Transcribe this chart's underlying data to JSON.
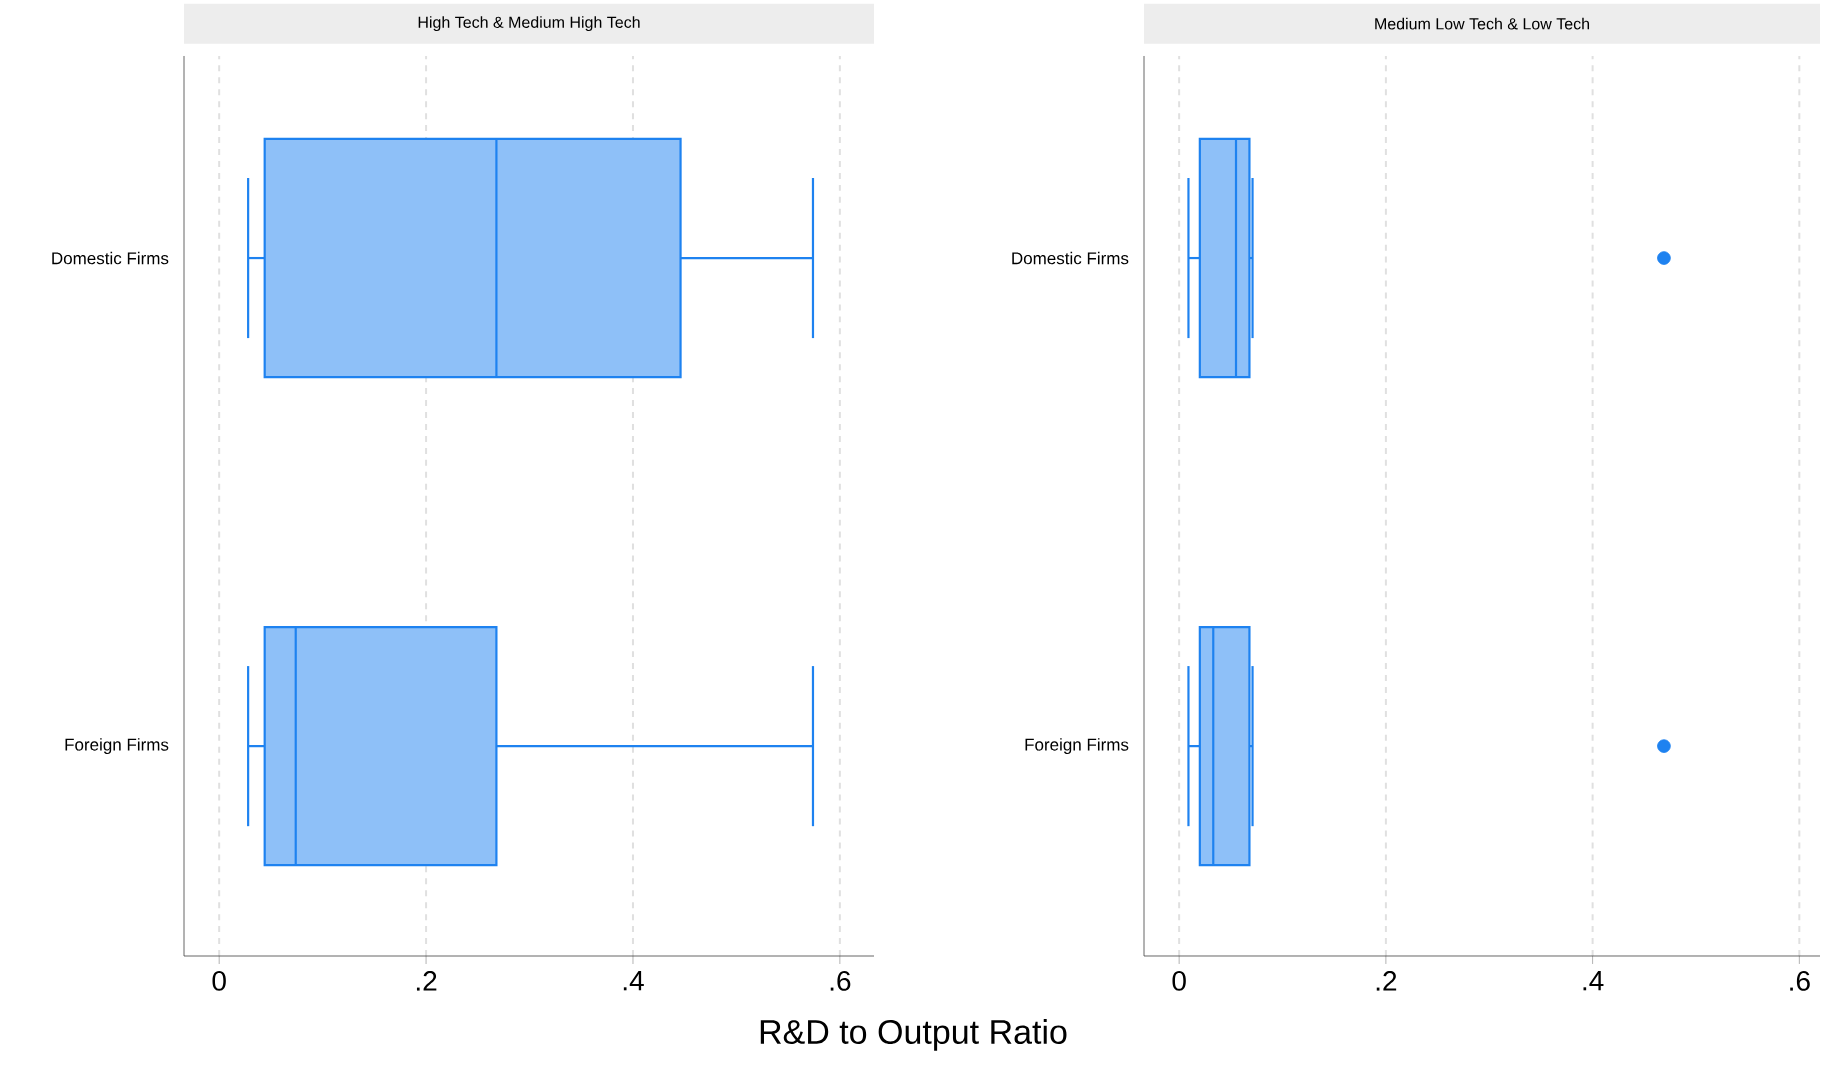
{
  "chart_data": [
    {
      "type": "box",
      "orientation": "horizontal",
      "title": "High Tech & Medium High Tech",
      "xlabel": "R&D to Output Ratio",
      "categories": [
        "Domestic Firms",
        "Foreign Firms"
      ],
      "grid": "x",
      "xlim": [
        -0.034,
        0.633
      ],
      "xticks": [
        0,
        {
          "value": 0.2,
          "label": ".2"
        },
        {
          "value": 0.4,
          "label": ".4"
        },
        {
          "value": 0.6,
          "label": ".6"
        }
      ],
      "series": [
        {
          "color": "#1e82f0",
          "boxes": [
            {
              "low": 0.028,
              "q1": 0.044,
              "median": 0.268,
              "q3": 0.446,
              "high": 0.574
            },
            {
              "low": 0.028,
              "q1": 0.044,
              "median": 0.074,
              "q3": 0.268,
              "high": 0.574
            }
          ]
        }
      ]
    },
    {
      "type": "box",
      "orientation": "horizontal",
      "title": "Medium Low Tech & Low Tech",
      "categories": [
        "Domestic Firms",
        "Foreign Firms"
      ],
      "grid": "x",
      "xlim": [
        -0.034,
        0.62
      ],
      "xticks": [
        0,
        {
          "value": 0.2,
          "label": ".2"
        },
        {
          "value": 0.4,
          "label": ".4"
        },
        {
          "value": 0.6,
          "label": ".6"
        }
      ],
      "series": [
        {
          "color": "#1e82f0",
          "boxes": [
            {
              "low": 0.009,
              "q1": 0.02,
              "median": 0.055,
              "q3": 0.068,
              "high": 0.071,
              "outliers": [
                0.469
              ]
            },
            {
              "low": 0.009,
              "q1": 0.02,
              "median": 0.033,
              "q3": 0.068,
              "high": 0.071,
              "outliers": [
                0.469
              ]
            }
          ]
        }
      ]
    }
  ]
}
